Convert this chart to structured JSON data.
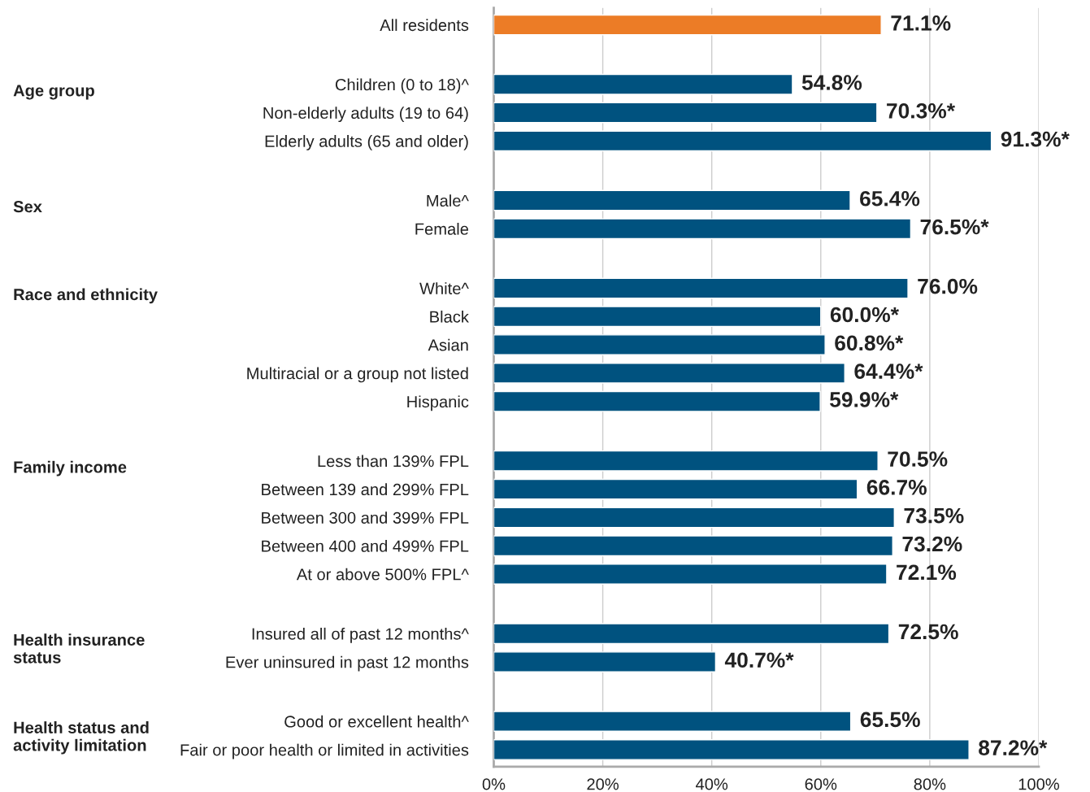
{
  "chart_data": {
    "type": "bar",
    "orientation": "horizontal",
    "categories": [
      "All residents",
      "Children (0 to 18)^",
      "Non-elderly adults (19 to 64)",
      "Elderly adults (65 and older)",
      "Male^",
      "Female",
      "White^",
      "Black",
      "Asian",
      "Multiracial or a group not listed",
      "Hispanic",
      "Less than 139% FPL",
      "Between 139 and 299% FPL",
      "Between 300 and 399% FPL",
      "Between 400 and 499% FPL",
      "At or above 500% FPL^",
      "Insured all of past 12 months^",
      "Ever uninsured in past 12 months",
      "Good or excellent health^",
      "Fair or poor health or limited in activities"
    ],
    "values": [
      71.1,
      54.8,
      70.3,
      91.3,
      65.4,
      76.5,
      76.0,
      60.0,
      60.8,
      64.4,
      59.9,
      70.5,
      66.7,
      73.5,
      73.2,
      72.1,
      72.5,
      40.7,
      65.5,
      87.2
    ],
    "value_labels": [
      "71.1%",
      "54.8%",
      "70.3%*",
      "91.3%*",
      "65.4%",
      "76.5%*",
      "76.0%",
      "60.0%*",
      "60.8%*",
      "64.4%*",
      "59.9%*",
      "70.5%",
      "66.7%",
      "73.5%",
      "73.2%",
      "72.1%",
      "72.5%",
      "40.7%*",
      "65.5%",
      "87.2%*"
    ],
    "colors": [
      "#ec7c26",
      "#00527f",
      "#00527f",
      "#00527f",
      "#00527f",
      "#00527f",
      "#00527f",
      "#00527f",
      "#00527f",
      "#00527f",
      "#00527f",
      "#00527f",
      "#00527f",
      "#00527f",
      "#00527f",
      "#00527f",
      "#00527f",
      "#00527f",
      "#00527f",
      "#00527f"
    ],
    "xlim": [
      0,
      100
    ],
    "xticks": [
      {
        "value": 0,
        "label": "0%"
      },
      {
        "value": 20,
        "label": "20%"
      },
      {
        "value": 40,
        "label": "40%"
      },
      {
        "value": 60,
        "label": "60%"
      },
      {
        "value": 80,
        "label": "80%"
      },
      {
        "value": 100,
        "label": "100%"
      }
    ],
    "grid": "x",
    "annotations": [
      "Age group",
      "Sex",
      "Race and ethnicity",
      "Family income",
      "Health insurance\nstatus",
      "Health status and\nactivity limitation"
    ]
  }
}
